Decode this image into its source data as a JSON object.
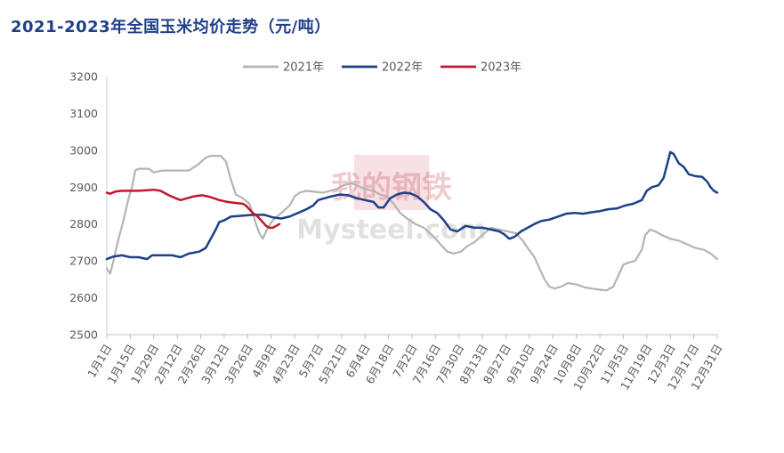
{
  "chart_data": {
    "type": "line",
    "title": "2021-2023年全国玉米均价走势（元/吨）",
    "xlabel": "",
    "ylabel": "",
    "ylim": [
      2500,
      3200
    ],
    "yticks": [
      2500,
      2600,
      2700,
      2800,
      2900,
      3000,
      3100,
      3200
    ],
    "x_range": [
      1,
      365
    ],
    "categories": [
      "1月1日",
      "1月15日",
      "1月29日",
      "2月12日",
      "2月26日",
      "3月12日",
      "3月26日",
      "4月9日",
      "4月23日",
      "5月7日",
      "5月21日",
      "6月4日",
      "6月18日",
      "7月2日",
      "7月16日",
      "7月30日",
      "8月13日",
      "8月27日",
      "9月10日",
      "9月24日",
      "10月8日",
      "10月22日",
      "11月5日",
      "11月19日",
      "12月3日",
      "12月17日",
      "12月31日"
    ],
    "category_days": [
      1,
      15,
      29,
      43,
      57,
      71,
      85,
      99,
      113,
      127,
      141,
      155,
      169,
      183,
      197,
      211,
      225,
      239,
      253,
      267,
      281,
      295,
      309,
      323,
      337,
      351,
      365
    ],
    "legend_position": "top",
    "grid": false,
    "watermark": {
      "cn": "我的钢铁",
      "en": "Mysteel.com"
    },
    "series": [
      {
        "name": "2021年",
        "color": "#b4b4b4",
        "points": [
          [
            1,
            2680
          ],
          [
            3,
            2665
          ],
          [
            5,
            2700
          ],
          [
            8,
            2760
          ],
          [
            11,
            2810
          ],
          [
            14,
            2870
          ],
          [
            16,
            2900
          ],
          [
            18,
            2945
          ],
          [
            20,
            2950
          ],
          [
            26,
            2950
          ],
          [
            29,
            2940
          ],
          [
            34,
            2945
          ],
          [
            40,
            2945
          ],
          [
            50,
            2945
          ],
          [
            55,
            2960
          ],
          [
            60,
            2980
          ],
          [
            63,
            2985
          ],
          [
            69,
            2985
          ],
          [
            72,
            2970
          ],
          [
            75,
            2920
          ],
          [
            78,
            2880
          ],
          [
            82,
            2870
          ],
          [
            86,
            2855
          ],
          [
            88,
            2830
          ],
          [
            90,
            2800
          ],
          [
            92,
            2775
          ],
          [
            94,
            2760
          ],
          [
            97,
            2790
          ],
          [
            100,
            2810
          ],
          [
            105,
            2830
          ],
          [
            110,
            2850
          ],
          [
            113,
            2875
          ],
          [
            116,
            2885
          ],
          [
            120,
            2890
          ],
          [
            130,
            2885
          ],
          [
            138,
            2895
          ],
          [
            142,
            2905
          ],
          [
            147,
            2910
          ],
          [
            150,
            2905
          ],
          [
            155,
            2895
          ],
          [
            160,
            2890
          ],
          [
            164,
            2880
          ],
          [
            168,
            2875
          ],
          [
            172,
            2855
          ],
          [
            176,
            2830
          ],
          [
            180,
            2815
          ],
          [
            185,
            2800
          ],
          [
            190,
            2790
          ],
          [
            195,
            2770
          ],
          [
            200,
            2745
          ],
          [
            204,
            2725
          ],
          [
            208,
            2720
          ],
          [
            212,
            2725
          ],
          [
            216,
            2740
          ],
          [
            220,
            2750
          ],
          [
            225,
            2770
          ],
          [
            230,
            2790
          ],
          [
            235,
            2785
          ],
          [
            240,
            2780
          ],
          [
            245,
            2775
          ],
          [
            249,
            2755
          ],
          [
            252,
            2735
          ],
          [
            256,
            2710
          ],
          [
            259,
            2680
          ],
          [
            262,
            2650
          ],
          [
            265,
            2630
          ],
          [
            268,
            2625
          ],
          [
            272,
            2630
          ],
          [
            276,
            2640
          ],
          [
            282,
            2635
          ],
          [
            286,
            2628
          ],
          [
            290,
            2625
          ],
          [
            295,
            2622
          ],
          [
            299,
            2620
          ],
          [
            303,
            2630
          ],
          [
            306,
            2660
          ],
          [
            309,
            2690
          ],
          [
            312,
            2695
          ],
          [
            316,
            2700
          ],
          [
            320,
            2730
          ],
          [
            322,
            2770
          ],
          [
            325,
            2785
          ],
          [
            328,
            2780
          ],
          [
            332,
            2770
          ],
          [
            337,
            2760
          ],
          [
            342,
            2755
          ],
          [
            347,
            2745
          ],
          [
            352,
            2735
          ],
          [
            357,
            2730
          ],
          [
            361,
            2720
          ],
          [
            365,
            2705
          ]
        ]
      },
      {
        "name": "2022年",
        "color": "#1f3f87",
        "points": [
          [
            1,
            2705
          ],
          [
            5,
            2712
          ],
          [
            10,
            2715
          ],
          [
            15,
            2710
          ],
          [
            20,
            2710
          ],
          [
            25,
            2705
          ],
          [
            28,
            2715
          ],
          [
            32,
            2715
          ],
          [
            40,
            2715
          ],
          [
            45,
            2710
          ],
          [
            50,
            2720
          ],
          [
            56,
            2725
          ],
          [
            60,
            2735
          ],
          [
            63,
            2760
          ],
          [
            66,
            2785
          ],
          [
            68,
            2805
          ],
          [
            71,
            2810
          ],
          [
            75,
            2820
          ],
          [
            80,
            2822
          ],
          [
            88,
            2825
          ],
          [
            95,
            2825
          ],
          [
            100,
            2818
          ],
          [
            105,
            2815
          ],
          [
            110,
            2820
          ],
          [
            115,
            2830
          ],
          [
            120,
            2840
          ],
          [
            124,
            2850
          ],
          [
            127,
            2865
          ],
          [
            131,
            2870
          ],
          [
            135,
            2875
          ],
          [
            140,
            2880
          ],
          [
            145,
            2878
          ],
          [
            150,
            2870
          ],
          [
            155,
            2865
          ],
          [
            160,
            2860
          ],
          [
            163,
            2845
          ],
          [
            166,
            2845
          ],
          [
            170,
            2870
          ],
          [
            174,
            2880
          ],
          [
            178,
            2885
          ],
          [
            182,
            2883
          ],
          [
            186,
            2875
          ],
          [
            190,
            2860
          ],
          [
            194,
            2840
          ],
          [
            198,
            2830
          ],
          [
            202,
            2810
          ],
          [
            206,
            2785
          ],
          [
            210,
            2780
          ],
          [
            215,
            2795
          ],
          [
            220,
            2790
          ],
          [
            225,
            2790
          ],
          [
            230,
            2785
          ],
          [
            235,
            2780
          ],
          [
            238,
            2772
          ],
          [
            241,
            2760
          ],
          [
            244,
            2765
          ],
          [
            248,
            2780
          ],
          [
            252,
            2790
          ],
          [
            256,
            2800
          ],
          [
            260,
            2808
          ],
          [
            265,
            2812
          ],
          [
            270,
            2820
          ],
          [
            275,
            2828
          ],
          [
            280,
            2830
          ],
          [
            285,
            2828
          ],
          [
            290,
            2832
          ],
          [
            295,
            2835
          ],
          [
            300,
            2840
          ],
          [
            305,
            2842
          ],
          [
            310,
            2850
          ],
          [
            315,
            2855
          ],
          [
            320,
            2865
          ],
          [
            323,
            2890
          ],
          [
            326,
            2900
          ],
          [
            330,
            2905
          ],
          [
            333,
            2925
          ],
          [
            335,
            2960
          ],
          [
            337,
            2995
          ],
          [
            339,
            2990
          ],
          [
            342,
            2965
          ],
          [
            345,
            2955
          ],
          [
            348,
            2935
          ],
          [
            352,
            2930
          ],
          [
            356,
            2928
          ],
          [
            359,
            2915
          ],
          [
            361,
            2900
          ],
          [
            363,
            2890
          ],
          [
            365,
            2885
          ]
        ]
      },
      {
        "name": "2023年",
        "color": "#c0172e",
        "points": [
          [
            1,
            2885
          ],
          [
            3,
            2882
          ],
          [
            6,
            2888
          ],
          [
            10,
            2890
          ],
          [
            20,
            2890
          ],
          [
            29,
            2893
          ],
          [
            33,
            2890
          ],
          [
            38,
            2878
          ],
          [
            42,
            2870
          ],
          [
            45,
            2865
          ],
          [
            49,
            2870
          ],
          [
            53,
            2875
          ],
          [
            58,
            2878
          ],
          [
            63,
            2873
          ],
          [
            68,
            2865
          ],
          [
            73,
            2860
          ],
          [
            78,
            2857
          ],
          [
            82,
            2855
          ],
          [
            84,
            2850
          ],
          [
            86,
            2840
          ],
          [
            88,
            2830
          ],
          [
            91,
            2820
          ],
          [
            94,
            2805
          ],
          [
            96,
            2795
          ],
          [
            98,
            2790
          ],
          [
            100,
            2790
          ],
          [
            102,
            2795
          ],
          [
            104,
            2800
          ]
        ]
      }
    ]
  }
}
